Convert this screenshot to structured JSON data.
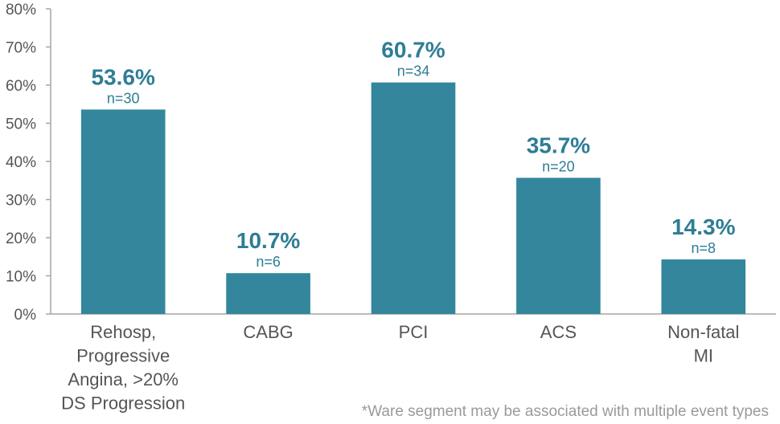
{
  "chart_data": {
    "type": "bar",
    "categories": [
      [
        "Rehosp,",
        "Progressive",
        "Angina, >20%",
        "DS Progression"
      ],
      [
        "CABG"
      ],
      [
        "PCI"
      ],
      [
        "ACS"
      ],
      [
        "Non-fatal",
        "MI"
      ]
    ],
    "values": [
      53.6,
      10.7,
      60.7,
      35.7,
      14.3
    ],
    "value_labels": [
      "53.6%",
      "10.7%",
      "60.7%",
      "35.7%",
      "14.3%"
    ],
    "n_labels": [
      "n=30",
      "n=6",
      "n=34",
      "n=20",
      "n=8"
    ],
    "yticks": [
      "0%",
      "10%",
      "20%",
      "30%",
      "40%",
      "50%",
      "60%",
      "70%",
      "80%"
    ],
    "ylim": [
      0,
      80
    ],
    "bar_color": "#33869c",
    "label_color": "#2e7d95",
    "grid": false,
    "footnote": "*Ware segment may be associated with multiple event types"
  }
}
